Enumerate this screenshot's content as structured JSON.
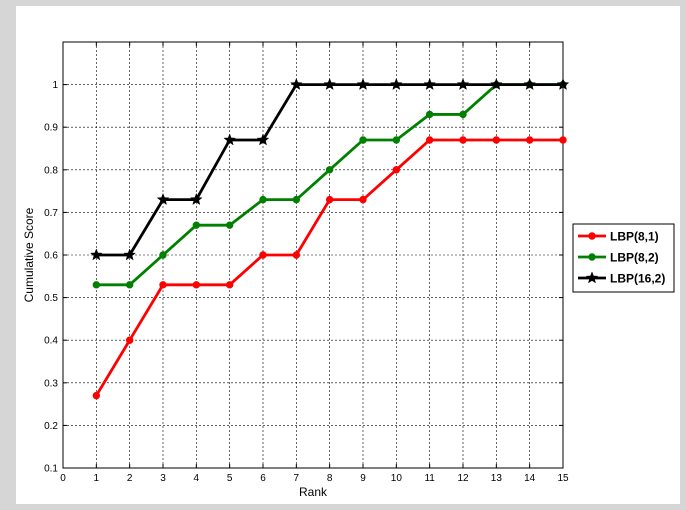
{
  "chart_data": {
    "type": "line",
    "title": "",
    "xlabel": "Rank",
    "ylabel": "Cumulative Score",
    "xlim": [
      0,
      15
    ],
    "ylim": [
      0.1,
      1.1
    ],
    "grid": true,
    "legend_position": "right",
    "x_ticks": [
      "0",
      "1",
      "2",
      "3",
      "4",
      "5",
      "6",
      "7",
      "8",
      "9",
      "10",
      "11",
      "12",
      "13",
      "14",
      "15"
    ],
    "y_ticks": [
      "0.1",
      "0.2",
      "0.3",
      "0.4",
      "0.5",
      "0.6",
      "0.7",
      "0.8",
      "0.9",
      "1"
    ],
    "x": [
      1,
      2,
      3,
      4,
      5,
      6,
      7,
      8,
      9,
      10,
      11,
      12,
      13,
      14,
      15
    ],
    "series": [
      {
        "name": "LBP(8,1)",
        "color": "#ff0000",
        "marker": "dot",
        "values": [
          0.27,
          0.4,
          0.53,
          0.53,
          0.53,
          0.6,
          0.6,
          0.73,
          0.73,
          0.8,
          0.87,
          0.87,
          0.87,
          0.87,
          0.87
        ]
      },
      {
        "name": "LBP(8,2)",
        "color": "#008000",
        "marker": "dot",
        "values": [
          0.53,
          0.53,
          0.6,
          0.67,
          0.67,
          0.73,
          0.73,
          0.8,
          0.87,
          0.87,
          0.93,
          0.93,
          1.0,
          1.0,
          1.0
        ]
      },
      {
        "name": "LBP(16,2)",
        "color": "#000000",
        "marker": "star",
        "values": [
          0.6,
          0.6,
          0.73,
          0.73,
          0.87,
          0.87,
          1.0,
          1.0,
          1.0,
          1.0,
          1.0,
          1.0,
          1.0,
          1.0,
          1.0
        ]
      }
    ]
  }
}
